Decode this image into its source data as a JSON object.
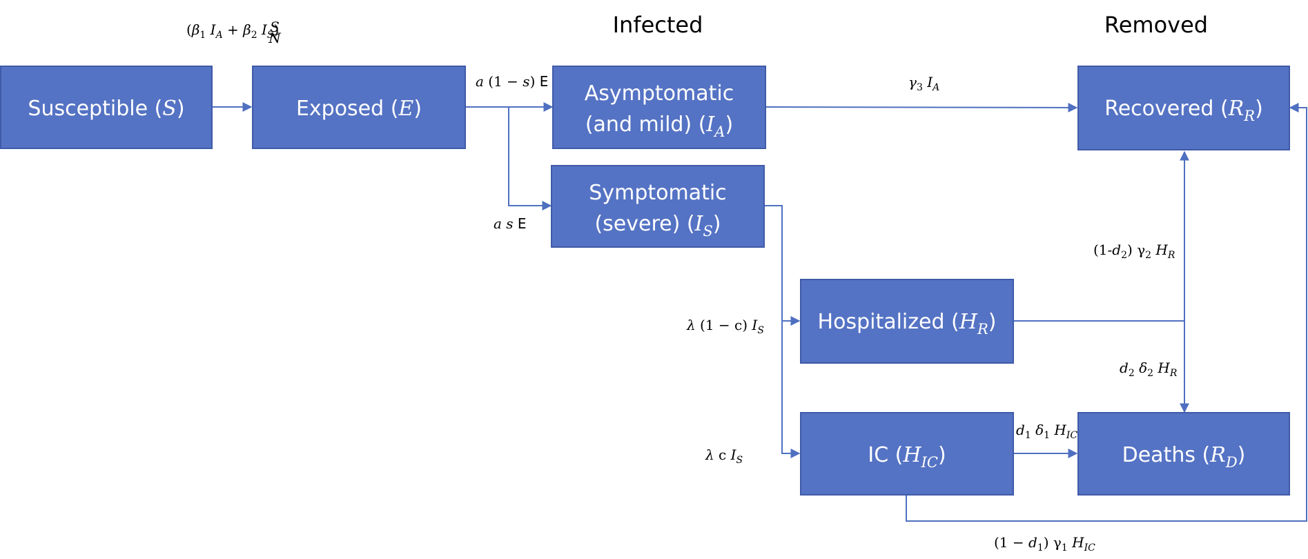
{
  "headings": {
    "infected": "Infected",
    "removed": "Removed"
  },
  "compartments": {
    "susceptible": {
      "label": "Susceptible (",
      "symbol": "S",
      "suffix": ")"
    },
    "exposed": {
      "label": "Exposed (",
      "symbol": "E",
      "suffix": ")"
    },
    "asymptomatic": {
      "line1": "Asymptomatic",
      "line2": "(and mild) (",
      "symbol": "I",
      "sub": "A",
      "suffix": ")"
    },
    "symptomatic": {
      "line1": "Symptomatic",
      "line2": "(severe) (",
      "symbol": "I",
      "sub": "S",
      "suffix": ")"
    },
    "hospitalized": {
      "label": "Hospitalized (",
      "symbol": "H",
      "sub": "R",
      "suffix": ")"
    },
    "ic": {
      "label": "IC (",
      "symbol": "H",
      "sub": "IC",
      "suffix": ")"
    },
    "recovered": {
      "label": "Recovered (",
      "symbol": "R",
      "sub": "R",
      "suffix": ")"
    },
    "deaths": {
      "label": "Deaths (",
      "symbol": "R",
      "sub": "D",
      "suffix": ")"
    }
  },
  "rates": {
    "infection": {
      "open": "(",
      "beta1": "β",
      "beta1_sub": "1",
      "ia": "I",
      "ia_sub": "A",
      "plus": " + ",
      "beta2": "β",
      "beta2_sub": "2",
      "is": "I",
      "is_sub": "S",
      "close": ")",
      "frac_num": "S",
      "frac_den": "N"
    },
    "asymp_onset": {
      "a": "a",
      "mid": " (1 − ",
      "s": "s",
      "end": ") ",
      "e": "E"
    },
    "symp_onset": {
      "a": "a",
      "s": " s",
      "e": " E"
    },
    "asymp_recovery": {
      "gamma": "γ",
      "gamma_sub": "3",
      "i": " I",
      "i_sub": "A"
    },
    "hosp_recovery": {
      "pre": "(1-",
      "d": "d",
      "d_sub": "2",
      "post": ") γ",
      "g_sub": "2",
      "h": " H",
      "h_sub": "R"
    },
    "hosp_death": {
      "d": "d",
      "d_sub": "2",
      "delta": " δ",
      "delta_sub": "2",
      "h": " H",
      "h_sub": "R"
    },
    "to_hosp": {
      "lambda": "λ",
      "mid": " (1 − c) ",
      "i": "I",
      "i_sub": "S"
    },
    "to_ic": {
      "lambda": "λ",
      "c": " c ",
      "i": "I",
      "i_sub": "S"
    },
    "ic_death": {
      "d": "d",
      "d_sub": "1",
      "delta": " δ",
      "delta_sub": "1",
      "h": " H",
      "h_sub": "IC"
    },
    "ic_recovery": {
      "pre": "(1 − ",
      "d": "d",
      "d_sub": "1",
      "post": ") γ",
      "g_sub": "1",
      "h": " H",
      "h_sub": "IC"
    }
  },
  "colors": {
    "box_fill": "#5573c4",
    "box_stroke": "#3f5aa8",
    "connector": "#4f6fc0",
    "box_text": "#ffffff"
  }
}
